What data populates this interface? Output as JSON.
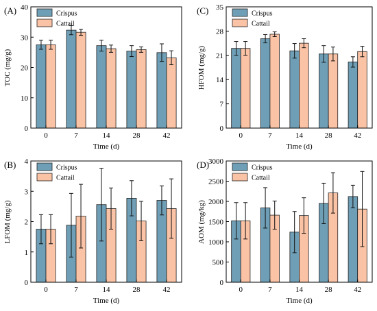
{
  "colors": {
    "Crispus": "#6f9fb6",
    "Cattail": "#fbc3a5"
  },
  "chart_data": [
    {
      "panel": "(A)",
      "type": "bar",
      "categories": [
        "0",
        "7",
        "14",
        "28",
        "42"
      ],
      "xlabel": "Time (d)",
      "ylabel": "TOC (mg/g)",
      "ylim": [
        0,
        40
      ],
      "yticks": [
        0,
        10,
        20,
        30,
        40
      ],
      "legend": "top-left",
      "series": [
        {
          "name": "Crispus",
          "values": [
            27.5,
            32.3,
            27.2,
            25.4,
            24.9
          ],
          "errors": [
            1.5,
            1.5,
            1.8,
            1.8,
            2.9
          ]
        },
        {
          "name": "Cattail",
          "values": [
            27.5,
            31.6,
            26.2,
            25.9,
            23.2
          ],
          "errors": [
            1.5,
            1.0,
            1.2,
            0.9,
            2.3
          ]
        }
      ]
    },
    {
      "panel": "(C)",
      "type": "bar",
      "categories": [
        "0",
        "7",
        "14",
        "28",
        "42"
      ],
      "xlabel": "Time (d)",
      "ylabel": "HFOM (mg/g)",
      "ylim": [
        0,
        35
      ],
      "yticks": [
        0,
        7,
        14,
        21,
        28,
        35
      ],
      "legend": "top-left",
      "series": [
        {
          "name": "Crispus",
          "values": [
            23.0,
            25.8,
            22.3,
            21.4,
            19.1
          ],
          "errors": [
            2.0,
            1.2,
            2.1,
            2.4,
            1.5
          ]
        },
        {
          "name": "Cattail",
          "values": [
            23.0,
            27.1,
            24.5,
            21.4,
            22.1
          ],
          "errors": [
            2.0,
            0.7,
            1.3,
            2.0,
            1.5
          ]
        }
      ]
    },
    {
      "panel": "(B)",
      "type": "bar",
      "categories": [
        "0",
        "7",
        "14",
        "28",
        "42"
      ],
      "xlabel": "Time (d)",
      "ylabel": "LFOM (mg/g)",
      "ylim": [
        0,
        4
      ],
      "yticks": [
        0,
        1,
        2,
        3,
        4
      ],
      "legend": "top-left",
      "series": [
        {
          "name": "Crispus",
          "values": [
            1.75,
            1.88,
            2.56,
            2.77,
            2.7
          ],
          "errors": [
            0.48,
            1.05,
            1.2,
            0.58,
            0.48
          ]
        },
        {
          "name": "Cattail",
          "values": [
            1.75,
            2.18,
            2.43,
            2.02,
            2.43
          ],
          "errors": [
            0.48,
            1.05,
            0.68,
            0.65,
            0.98
          ]
        }
      ]
    },
    {
      "panel": "(D)",
      "type": "bar",
      "categories": [
        "0",
        "7",
        "14",
        "28",
        "42"
      ],
      "xlabel": "Time (d)",
      "ylabel": "AOM (mg/kg)",
      "ylim": [
        0,
        3000
      ],
      "yticks": [
        0,
        500,
        1000,
        1500,
        2000,
        2500,
        3000
      ],
      "legend": "top-left",
      "series": [
        {
          "name": "Crispus",
          "values": [
            1520,
            1840,
            1240,
            1950,
            2120
          ],
          "errors": [
            450,
            500,
            510,
            500,
            280
          ]
        },
        {
          "name": "Cattail",
          "values": [
            1520,
            1660,
            1650,
            2210,
            1810
          ],
          "errors": [
            450,
            350,
            440,
            500,
            930
          ]
        }
      ]
    }
  ]
}
